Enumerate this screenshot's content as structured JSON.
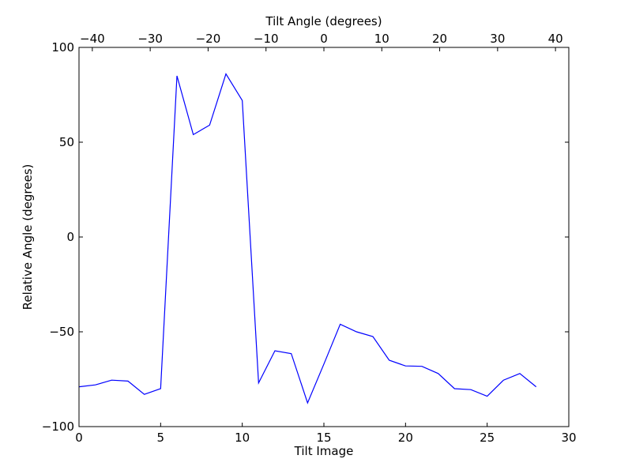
{
  "chart_data": {
    "type": "line",
    "xlabel": "Tilt Image",
    "ylabel": "Relative Angle (degrees)",
    "top_xlabel": "Tilt Angle (degrees)",
    "xlim": [
      0,
      30
    ],
    "ylim": [
      -100,
      100
    ],
    "top_xlim": [
      -42.3,
      42.3
    ],
    "x_ticks": [
      0,
      5,
      10,
      15,
      20,
      25,
      30
    ],
    "y_ticks": [
      -100,
      -50,
      0,
      50,
      100
    ],
    "top_x_ticks": [
      -40,
      -30,
      -20,
      -10,
      0,
      10,
      20,
      30,
      40
    ],
    "x_tick_labels": [
      "0",
      "5",
      "10",
      "15",
      "20",
      "25",
      "30"
    ],
    "y_tick_labels": [
      "−100",
      "−50",
      "0",
      "50",
      "100"
    ],
    "top_x_tick_labels": [
      "−40",
      "−30",
      "−20",
      "−10",
      "0",
      "10",
      "20",
      "30",
      "40"
    ],
    "grid": false,
    "series": [
      {
        "color": "#0000ff",
        "x": [
          0,
          1,
          2,
          3,
          4,
          5,
          6,
          7,
          8,
          9,
          10,
          11,
          12,
          13,
          14,
          15,
          16,
          17,
          18,
          19,
          20,
          21,
          22,
          23,
          24,
          25,
          26,
          27,
          28
        ],
        "values": [
          -79,
          -78,
          -75.5,
          -76,
          -83,
          -80,
          85,
          54,
          59,
          86,
          72,
          -77,
          -60,
          -61.5,
          -87.5,
          -67,
          -46,
          -50,
          -52.5,
          -65,
          -68,
          -68.2,
          -72,
          -80,
          -80.5,
          -84,
          -75.5,
          -72,
          -79
        ]
      }
    ]
  }
}
